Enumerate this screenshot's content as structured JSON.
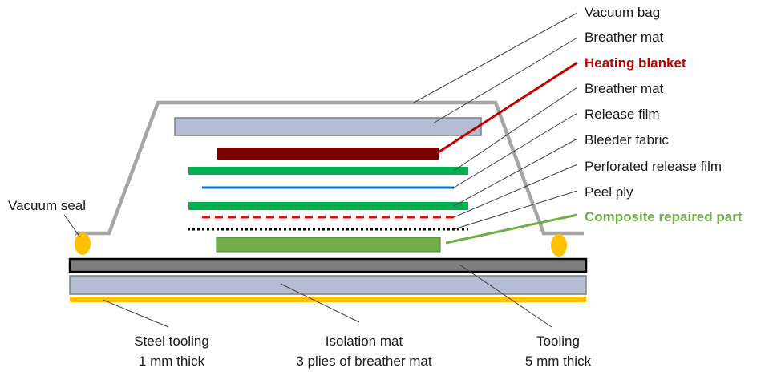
{
  "labels": {
    "vacuum_bag": "Vacuum bag",
    "breather_mat_top": "Breather mat",
    "heating_blanket": "Heating blanket",
    "breather_mat": "Breather mat",
    "release_film": "Release  film",
    "bleeder_fabric": "Bleeder fabric",
    "perforated_release_film": "Perforated release film",
    "peel_ply": "Peel ply",
    "composite_repaired_part": "Composite repaired part",
    "vacuum_seal": "Vacuum seal",
    "steel_tooling_line1": "Steel tooling",
    "steel_tooling_line2": "1 mm thick",
    "isolation_mat_line1": "Isolation mat",
    "isolation_mat_line2": "3 plies of breather mat",
    "tooling_line1": "Tooling",
    "tooling_line2": "5 mm thick"
  },
  "colors": {
    "bag": "#a6a6a6",
    "breather": "#b4bdd3",
    "breather_stroke": "#7f7f7f",
    "heating": "#7b0000",
    "heating_label": "#c00000",
    "green_layer": "#00b050",
    "blue_film": "#0070c0",
    "red_dash": "#ff0000",
    "peel_ply": "#000000",
    "composite": "#70ad47",
    "composite_label": "#70ad47",
    "seal": "#ffc000",
    "tooling": "#7f7f7f",
    "steel": "#ffc000"
  }
}
